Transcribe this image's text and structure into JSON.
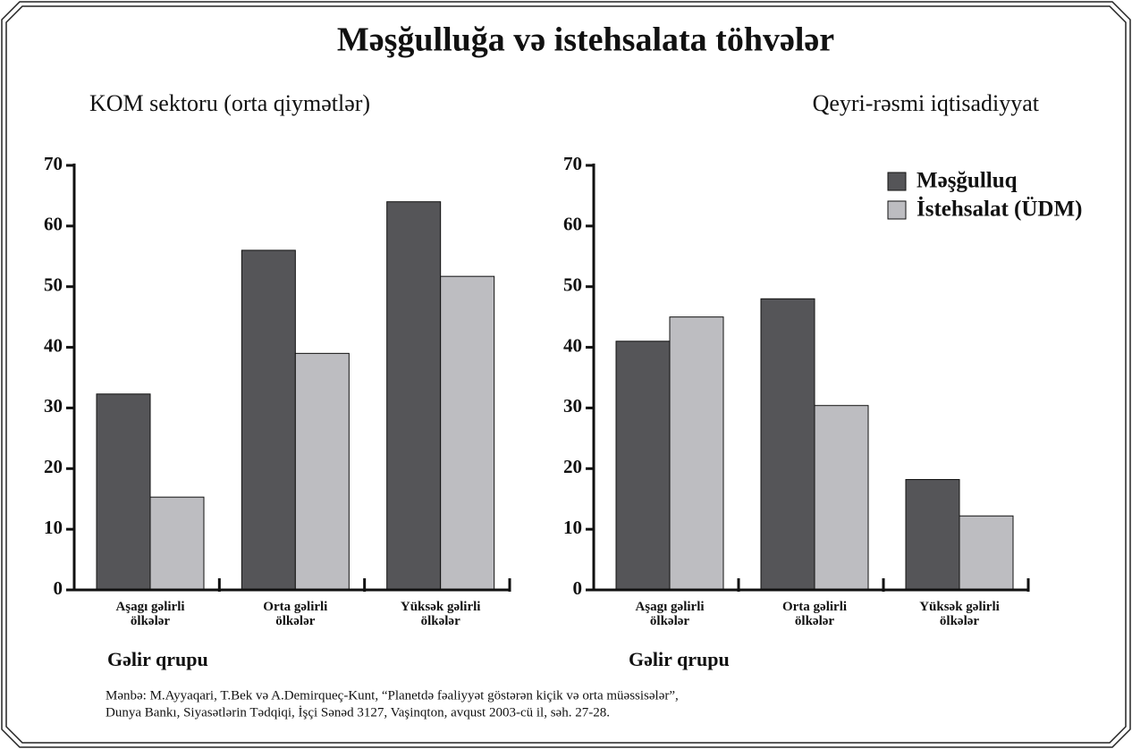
{
  "title": "Məşğulluğa və istehsalata töhvələr",
  "source": [
    "Mənbə: M.Ayyaqari, T.Bek və A.Demirqueç-Kunt, “Planetdə fəaliyyət göstərən kiçik və orta  müəssisələr”,",
    "Dunya Bankı, Siyasətlərin Tədqiqi, İşçi Sənəd 3127, Vaşinqton, avqust 2003-cü il, səh. 27-28."
  ],
  "chart_data": [
    {
      "type": "bar",
      "title": "KOM sektoru (orta qiymətlər)",
      "xlabel": "Gəlir qrupu",
      "categories": [
        "Aşagı gəlirli\nölkələr",
        "Orta gəlirli\nölkələr",
        "Yüksək gəlirli\nölkələr"
      ],
      "series": [
        {
          "name": "Məşğulluq",
          "color": "#555558",
          "values": [
            32.3,
            56,
            64
          ]
        },
        {
          "name": "İstehsalat (ÜDM)",
          "color": "#bdbdc1",
          "values": [
            15.3,
            39,
            51.7
          ]
        }
      ],
      "ylim": [
        0,
        70
      ],
      "yticks": [
        0,
        10,
        20,
        30,
        40,
        50,
        60,
        70
      ],
      "legend": false
    },
    {
      "type": "bar",
      "title": "Qeyri-rəsmi iqtisadiyyat",
      "xlabel": "Gəlir qrupu",
      "categories": [
        "Aşagı gəlirli\nölkələr",
        "Orta gəlirli\nölkələr",
        "Yüksək gəlirli\nölkələr"
      ],
      "series": [
        {
          "name": "Məşğulluq",
          "color": "#555558",
          "values": [
            41,
            48,
            18.2
          ]
        },
        {
          "name": "İstehsalat (ÜDM)",
          "color": "#bdbdc1",
          "values": [
            45,
            30.4,
            12.2
          ]
        }
      ],
      "ylim": [
        0,
        70
      ],
      "yticks": [
        0,
        10,
        20,
        30,
        40,
        50,
        60,
        70
      ],
      "legend": "upper right"
    }
  ]
}
